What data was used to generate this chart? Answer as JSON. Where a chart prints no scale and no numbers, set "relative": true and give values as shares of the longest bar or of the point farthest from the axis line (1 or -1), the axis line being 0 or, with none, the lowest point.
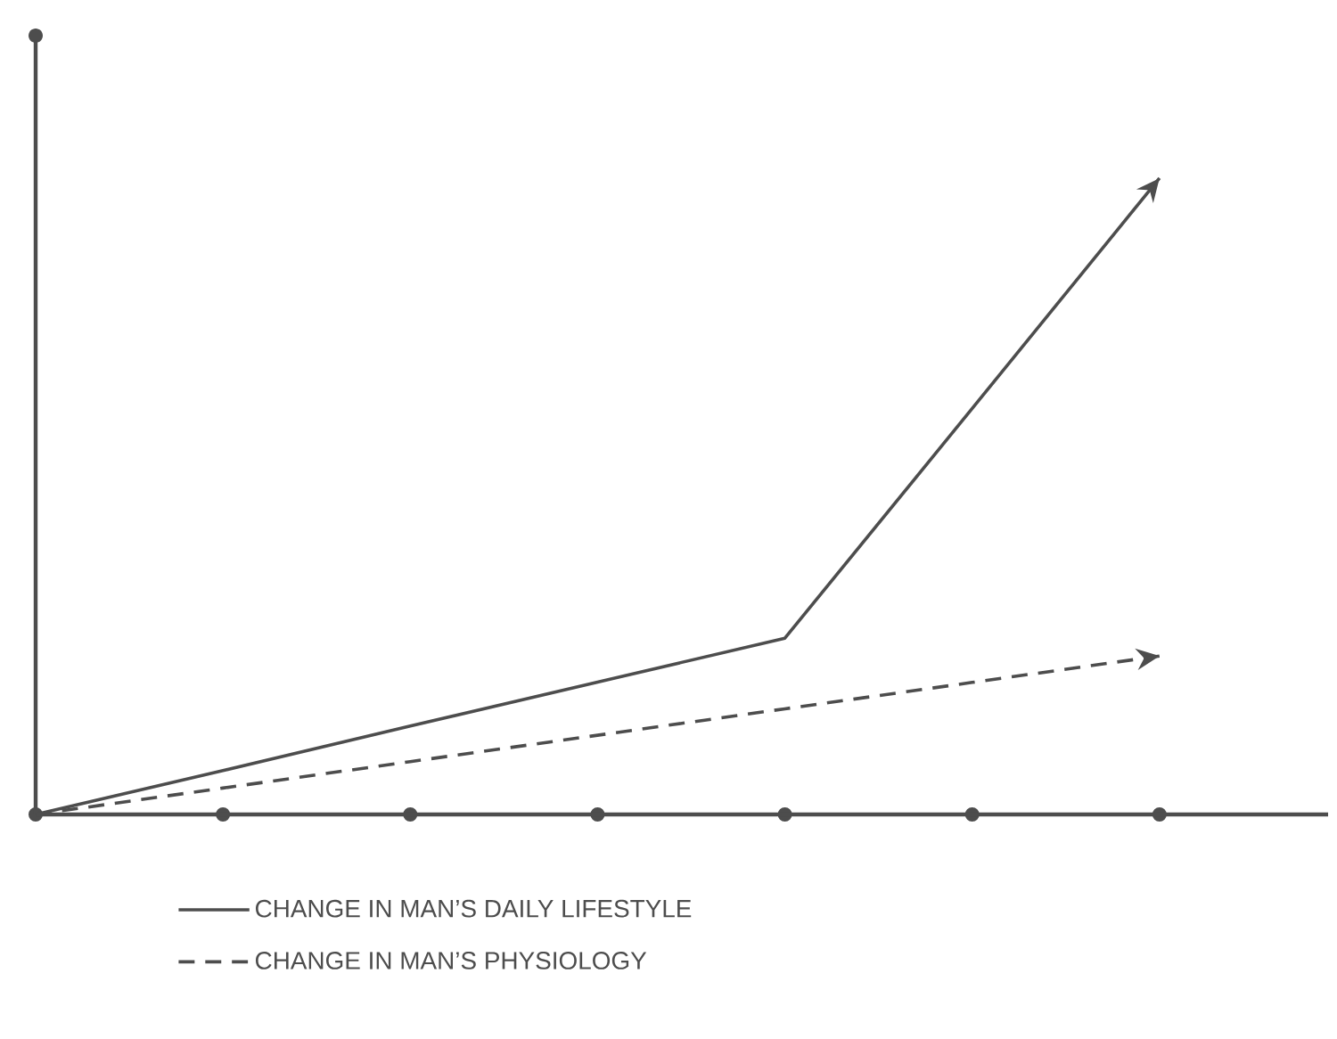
{
  "chart_data": {
    "type": "line",
    "relative": true,
    "categories": [
      null,
      null,
      null,
      null,
      null,
      null,
      null
    ],
    "series": [
      {
        "name": "CHANGE IN MAN’S DAILY LIFESTYLE",
        "color": "#4d4d4d",
        "line_style": "solid",
        "values": [
          0,
          0.069,
          0.139,
          0.208,
          0.277,
          0.638,
          1
        ]
      },
      {
        "name": "CHANGE IN MAN’S PHYSIOLOGY",
        "color": "#4d4d4d",
        "line_style": "dashed",
        "values": [
          0,
          0.0415,
          0.083,
          0.1245,
          0.166,
          0.2075,
          0.249
        ]
      }
    ],
    "legend": "bottom",
    "grid": false,
    "marker": "none"
  }
}
